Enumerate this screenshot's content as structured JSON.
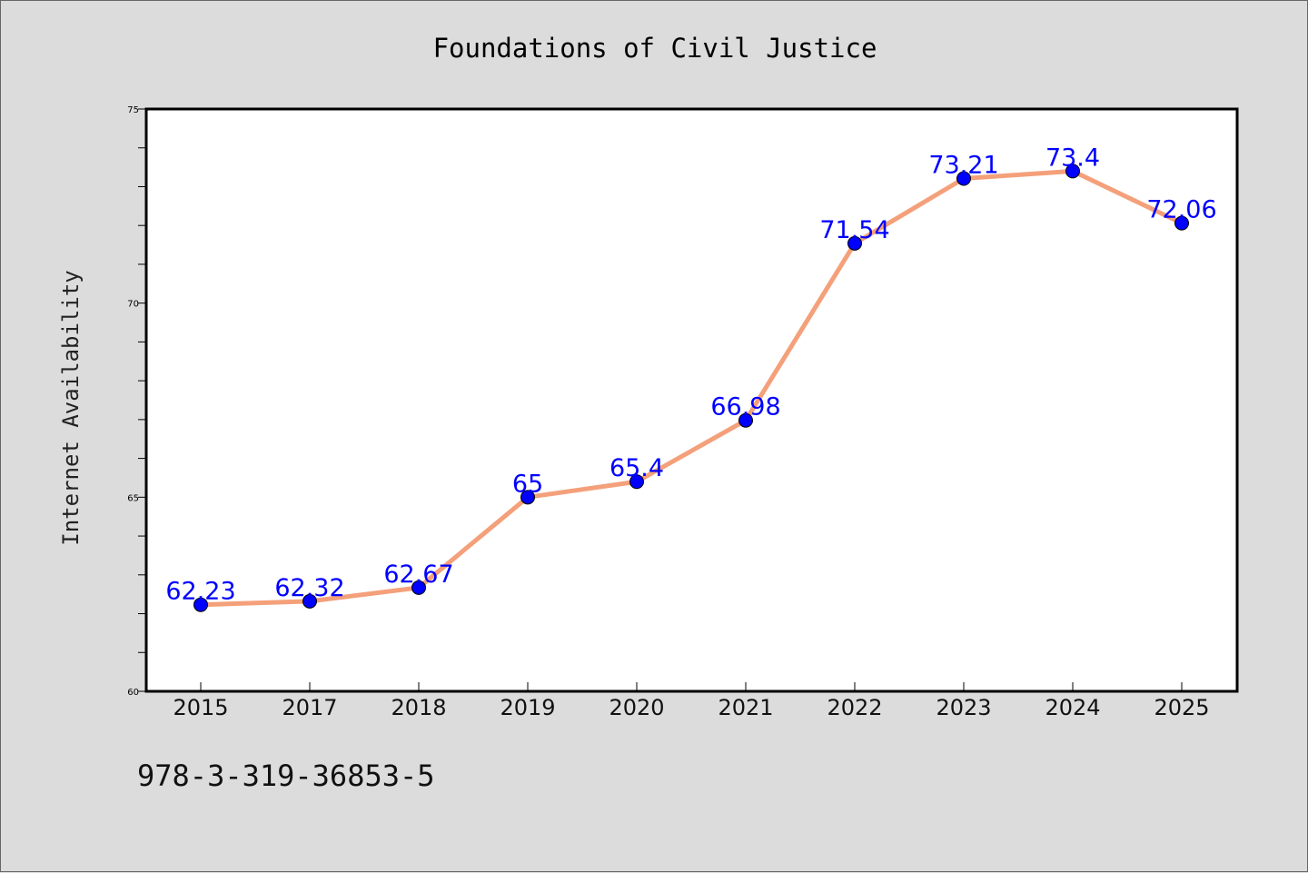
{
  "chart_data": {
    "type": "line",
    "title": "Foundations of Civil Justice",
    "xlabel": "",
    "ylabel": "Internet Availability",
    "categories": [
      "2015",
      "2017",
      "2018",
      "2019",
      "2020",
      "2021",
      "2022",
      "2023",
      "2024",
      "2025"
    ],
    "series": [
      {
        "values": [
          62.23,
          62.32,
          62.67,
          65,
          65.4,
          66.98,
          71.54,
          73.21,
          73.4,
          72.06
        ],
        "labels": [
          "62.23",
          "62.32",
          "62.67",
          "65",
          "65.4",
          "66.98",
          "71.54",
          "73.21",
          "73.4",
          "72.06"
        ],
        "line_color": "#f4a07a",
        "marker_color": "#0000ff"
      }
    ],
    "ylim": [
      60,
      75
    ],
    "yticks": [
      "60",
      "65",
      "70",
      "75"
    ],
    "grid": false,
    "legend": "none"
  },
  "footer": {
    "isbn": "978-3-319-36853-5"
  },
  "colors": {
    "background": "#dcdcdc",
    "plot_area": "#ffffff",
    "data_label": "#0000ff"
  }
}
